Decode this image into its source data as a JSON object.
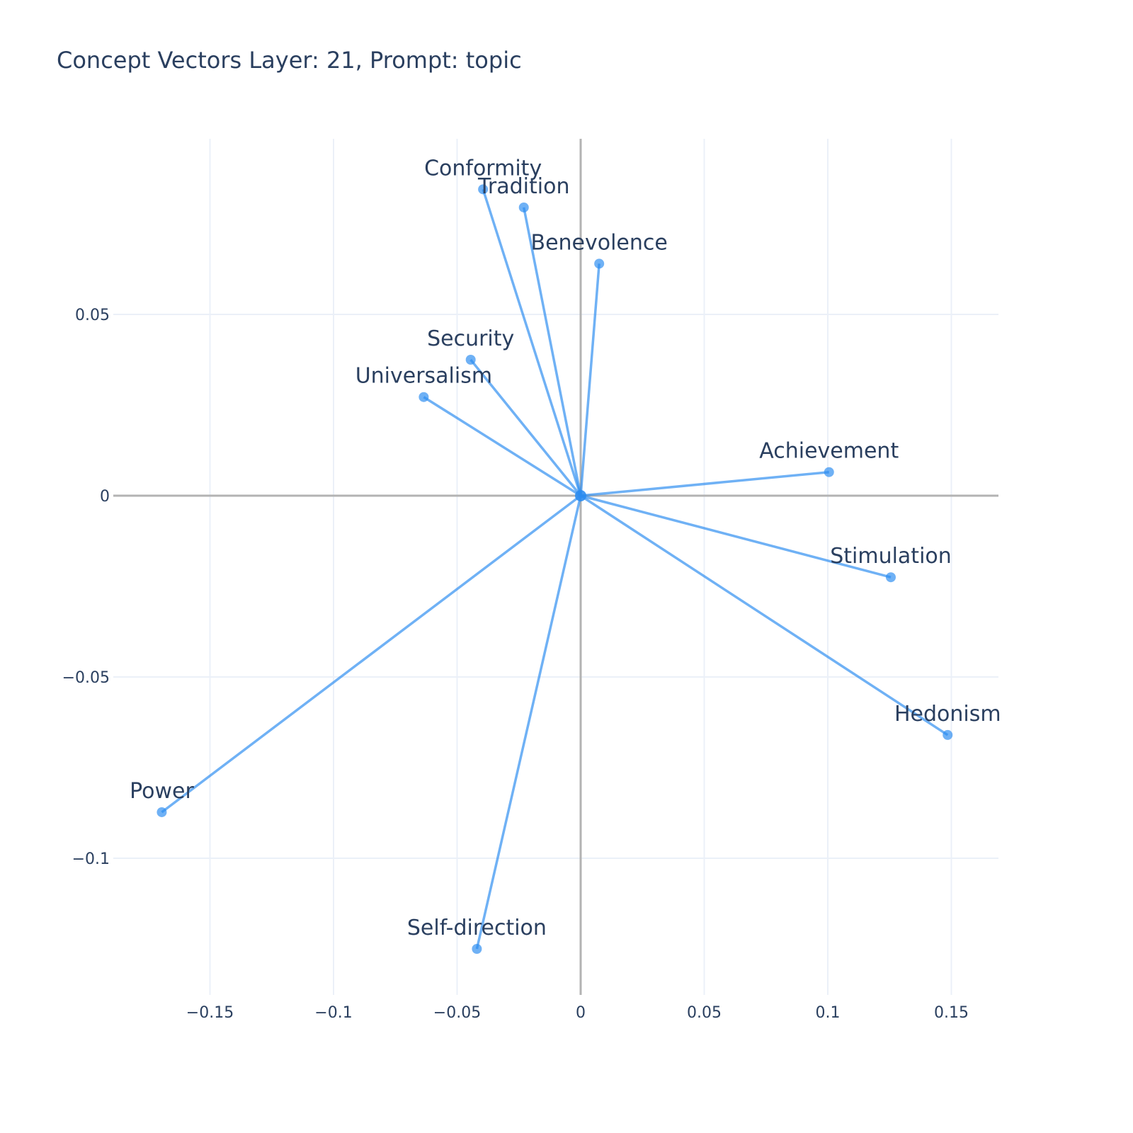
{
  "title": "Concept Vectors Layer: 21, Prompt: topic",
  "colors": {
    "vector": "#2b8cf0",
    "grid": "#ebf0f8",
    "axis": "#b3b3b3",
    "text": "#2a3f5f"
  },
  "chart_data": {
    "type": "scatter",
    "title": "Concept Vectors Layer: 21, Prompt: topic",
    "xlabel": "",
    "ylabel": "",
    "xlim": [
      -0.1875,
      0.17
    ],
    "ylim": [
      -0.138,
      0.098
    ],
    "grid": true,
    "x_ticks": [
      {
        "value": -0.15,
        "label": "−0.15"
      },
      {
        "value": -0.1,
        "label": "−0.1"
      },
      {
        "value": -0.05,
        "label": "−0.05"
      },
      {
        "value": 0,
        "label": "0"
      },
      {
        "value": 0.05,
        "label": "0.05"
      },
      {
        "value": 0.1,
        "label": "0.1"
      },
      {
        "value": 0.15,
        "label": "0.15"
      }
    ],
    "y_ticks": [
      {
        "value": 0.05,
        "label": "0.05"
      },
      {
        "value": 0,
        "label": "0"
      },
      {
        "value": -0.05,
        "label": "−0.05"
      },
      {
        "value": -0.1,
        "label": "−0.1"
      }
    ],
    "origin": [
      0,
      0
    ],
    "points": [
      {
        "name": "Conformity",
        "x": -0.0395,
        "y": 0.0845
      },
      {
        "name": "Tradition",
        "x": -0.023,
        "y": 0.0795
      },
      {
        "name": "Benevolence",
        "x": 0.0075,
        "y": 0.064
      },
      {
        "name": "Security",
        "x": -0.0445,
        "y": 0.0375
      },
      {
        "name": "Universalism",
        "x": -0.0635,
        "y": 0.0272
      },
      {
        "name": "Achievement",
        "x": 0.1005,
        "y": 0.0065
      },
      {
        "name": "Stimulation",
        "x": 0.1255,
        "y": -0.0225
      },
      {
        "name": "Hedonism",
        "x": 0.1485,
        "y": -0.066
      },
      {
        "name": "Power",
        "x": -0.1695,
        "y": -0.0873
      },
      {
        "name": "Self-direction",
        "x": -0.042,
        "y": -0.125
      }
    ]
  }
}
